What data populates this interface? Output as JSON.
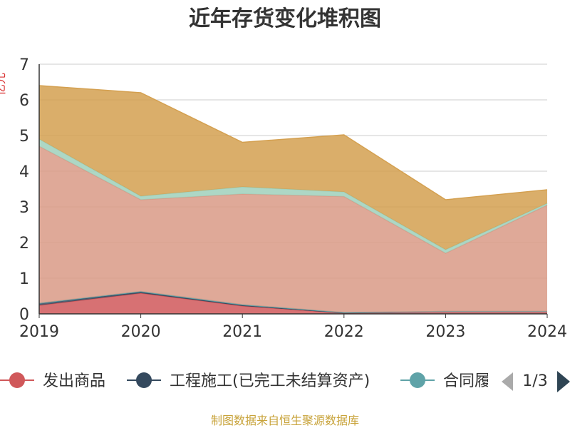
{
  "chart_data": {
    "type": "area",
    "stacked": true,
    "title": "近年存货变化堆积图",
    "ylabel": "亿元",
    "x": [
      "2019",
      "2020",
      "2021",
      "2022",
      "2023",
      "2024"
    ],
    "ylim": [
      0,
      7
    ],
    "yticks": [
      0,
      1,
      2,
      3,
      4,
      5,
      6,
      7
    ],
    "grid": true,
    "series": [
      {
        "name": "发出商品",
        "color": "#d0585a",
        "values": [
          0.24,
          0.58,
          0.22,
          0.02,
          0.06,
          0.06
        ]
      },
      {
        "name": "工程施工(已完工未结算资产)",
        "color": "#34495e",
        "values": [
          0.06,
          0.03,
          0.02,
          0.01,
          0.01,
          0.01
        ]
      },
      {
        "name": "合同履约成本",
        "color": "#5fa3a8",
        "values": [
          0.0,
          0.02,
          0.02,
          0.01,
          0.0,
          0.0
        ]
      },
      {
        "name": "",
        "color": "#d99a86",
        "values": [
          4.4,
          2.57,
          3.1,
          3.25,
          1.63,
          2.98
        ]
      },
      {
        "name": "",
        "color": "#9fd0bb",
        "values": [
          0.2,
          0.1,
          0.2,
          0.13,
          0.1,
          0.05
        ]
      },
      {
        "name": "",
        "color": "#d4a050",
        "values": [
          1.5,
          2.9,
          1.25,
          1.6,
          1.4,
          0.38
        ]
      }
    ],
    "legend": {
      "position": "bottom",
      "visible_items": [
        "发出商品",
        "工程施工(已完工未结算资产)",
        "合同履"
      ],
      "page": "1/3"
    },
    "source": "制图数据来自恒生聚源数据库"
  }
}
